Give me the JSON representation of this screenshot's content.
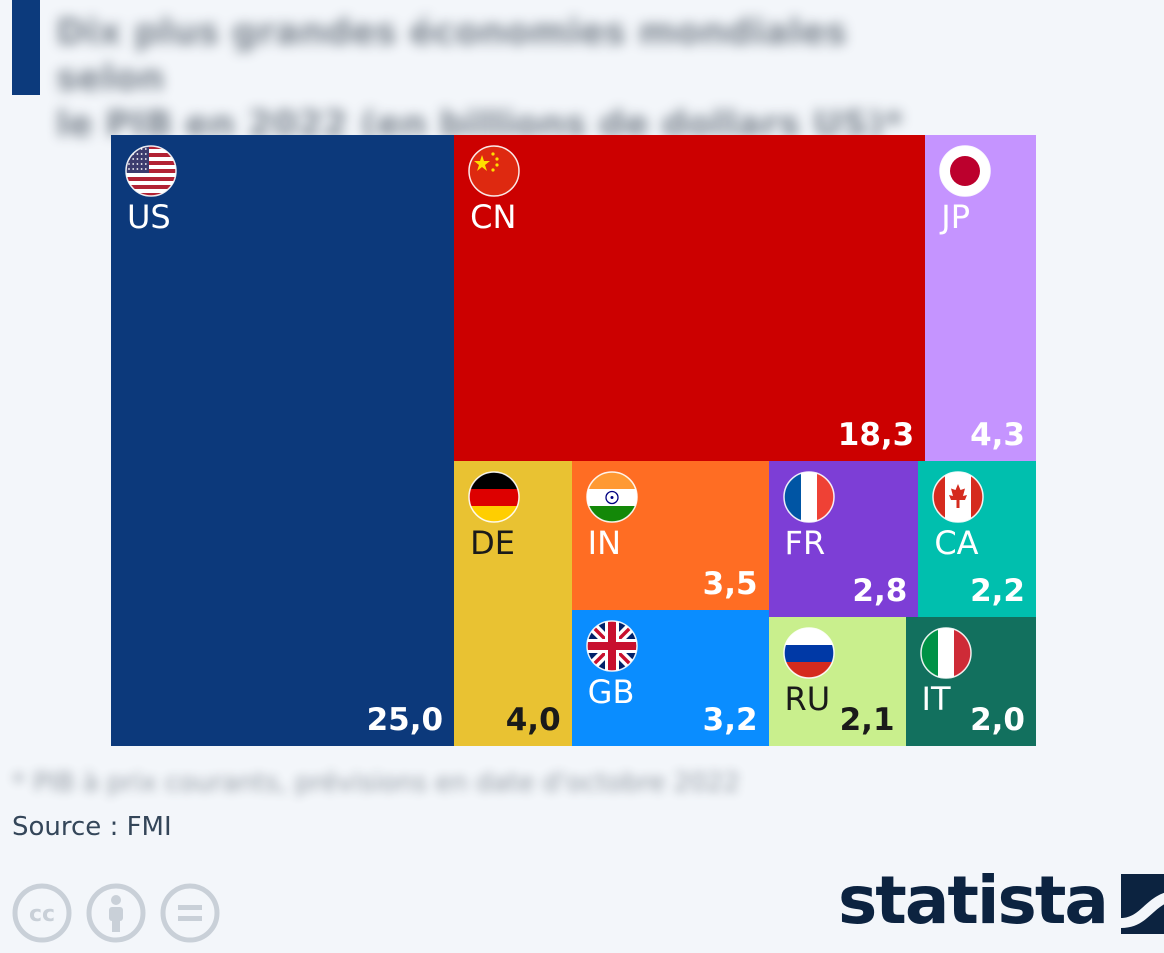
{
  "title_lines": [
    "Dix plus grandes économies mondiales selon",
    "le PIB en 2022 (en billions de dollars US)*"
  ],
  "footnote": "* PIB à prix courants, prévisions en date d'octobre 2022",
  "source": "Source : FMI",
  "brand": "statista",
  "license_icons": [
    "cc-icon",
    "attribution-icon",
    "no-derivatives-icon"
  ],
  "chart_data": {
    "type": "treemap",
    "items": [
      {
        "code": "US",
        "value": 25.0,
        "label": "25,0",
        "color": "#0c397b",
        "text_color": "#ffffff",
        "flag": "us-flag-icon"
      },
      {
        "code": "CN",
        "value": 18.3,
        "label": "18,3",
        "color": "#cc0000",
        "text_color": "#ffffff",
        "flag": "cn-flag-icon"
      },
      {
        "code": "JP",
        "value": 4.3,
        "label": "4,3",
        "color": "#c594ff",
        "text_color": "#ffffff",
        "flag": "jp-flag-icon"
      },
      {
        "code": "DE",
        "value": 4.0,
        "label": "4,0",
        "color": "#e9c232",
        "text_color": "#1a1a1a",
        "flag": "de-flag-icon"
      },
      {
        "code": "IN",
        "value": 3.5,
        "label": "3,5",
        "color": "#ff6d23",
        "text_color": "#ffffff",
        "flag": "in-flag-icon"
      },
      {
        "code": "GB",
        "value": 3.2,
        "label": "3,2",
        "color": "#0a8dff",
        "text_color": "#ffffff",
        "flag": "gb-flag-icon"
      },
      {
        "code": "FR",
        "value": 2.8,
        "label": "2,8",
        "color": "#7d3ed6",
        "text_color": "#ffffff",
        "flag": "fr-flag-icon"
      },
      {
        "code": "CA",
        "value": 2.2,
        "label": "2,2",
        "color": "#00bfae",
        "text_color": "#ffffff",
        "flag": "ca-flag-icon"
      },
      {
        "code": "RU",
        "value": 2.1,
        "label": "2,1",
        "color": "#c9ef8d",
        "text_color": "#1a1a1a",
        "flag": "ru-flag-icon"
      },
      {
        "code": "IT",
        "value": 2.0,
        "label": "2,0",
        "color": "#12705e",
        "text_color": "#ffffff",
        "flag": "it-flag-icon"
      }
    ]
  }
}
